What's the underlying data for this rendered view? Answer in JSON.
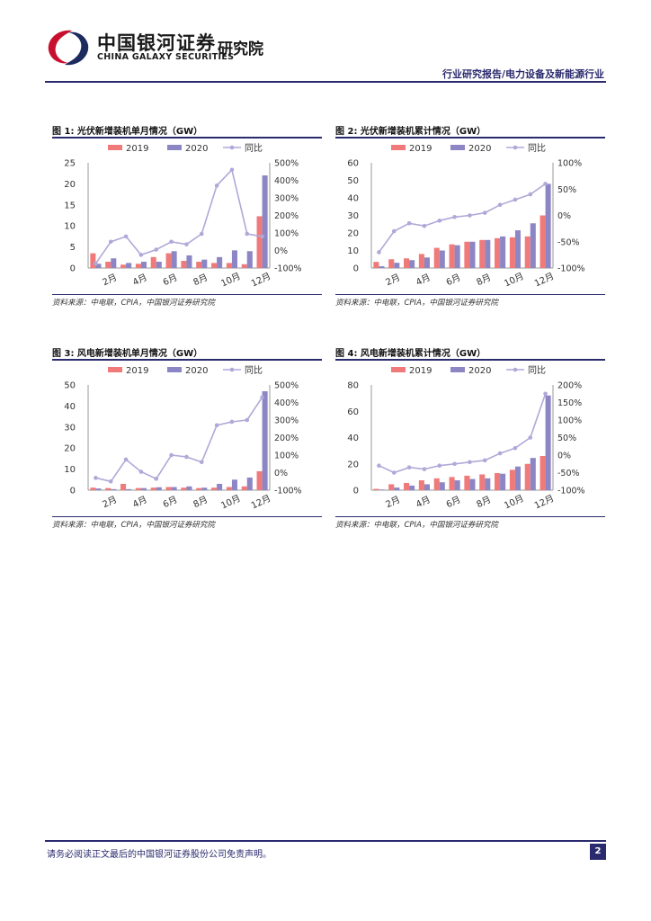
{
  "header": {
    "logo_cn": "中国银河证券",
    "logo_en": "CHINA GALAXY SECURITIES",
    "logo_sub": "研究院",
    "category": "行业研究报告/电力设备及新能源行业"
  },
  "colors": {
    "bar2019": "#f07a7a",
    "bar2020": "#8c86c4",
    "line": "#b0a8d8",
    "rule": "#2a2a6e"
  },
  "figures": [
    {
      "title": "图 1: 光伏新增装机单月情况（GW）",
      "source": "资料来源：中电联，CPIA，中国银河证券研究院"
    },
    {
      "title": "图 2: 光伏新增装机累计情况（GW）",
      "source": "资料来源：中电联，CPIA，中国银河证券研究院"
    },
    {
      "title": "图 3: 风电新增装机单月情况（GW）",
      "source": "资料来源：中电联，CPIA，中国银河证券研究院"
    },
    {
      "title": "图 4: 风电新增装机累计情况（GW）",
      "source": "资料来源：中电联，CPIA，中国银河证券研究院"
    }
  ],
  "chart_data": [
    {
      "type": "bar",
      "title": "光伏新增装机单月情况（GW）",
      "categories": [
        "1月",
        "2月",
        "3月",
        "4月",
        "5月",
        "6月",
        "7月",
        "8月",
        "9月",
        "10月",
        "11月",
        "12月"
      ],
      "x_tick_labels": [
        "2月",
        "4月",
        "6月",
        "8月",
        "10月",
        "12月"
      ],
      "legend": [
        "2019",
        "2020",
        "同比"
      ],
      "series": [
        {
          "name": "2019",
          "values": [
            3.5,
            1.5,
            0.8,
            1.0,
            2.6,
            3.5,
            1.7,
            1.5,
            1.2,
            1.2,
            0.9,
            12.3
          ]
        },
        {
          "name": "2020",
          "values": [
            1.0,
            2.3,
            1.2,
            1.5,
            1.5,
            4.0,
            3.0,
            2.0,
            2.6,
            4.2,
            4.0,
            22.0
          ]
        },
        {
          "name": "同比",
          "axis": "right",
          "values": [
            -75,
            50,
            80,
            -25,
            5,
            50,
            35,
            95,
            370,
            460,
            95,
            80
          ]
        }
      ],
      "ylim": [
        0,
        25
      ],
      "y_ticks": [
        "0",
        "5",
        "10",
        "15",
        "20",
        "25"
      ],
      "y2lim": [
        -100,
        500
      ],
      "y2_ticks": [
        "-100%",
        "0%",
        "100%",
        "200%",
        "300%",
        "400%",
        "500%"
      ]
    },
    {
      "type": "bar",
      "title": "光伏新增装机累计情况（GW）",
      "categories": [
        "1月",
        "2月",
        "3月",
        "4月",
        "5月",
        "6月",
        "7月",
        "8月",
        "9月",
        "10月",
        "11月",
        "12月"
      ],
      "x_tick_labels": [
        "2月",
        "4月",
        "6月",
        "8月",
        "10月",
        "12月"
      ],
      "legend": [
        "2019",
        "2020",
        "同比"
      ],
      "series": [
        {
          "name": "2019",
          "values": [
            3.5,
            5.0,
            5.5,
            8.0,
            11.5,
            13.5,
            15.0,
            16.0,
            17.0,
            17.5,
            18.0,
            30.0
          ]
        },
        {
          "name": "2020",
          "values": [
            1.0,
            3.0,
            4.5,
            6.0,
            10.0,
            13.0,
            15.0,
            16.0,
            18.0,
            21.5,
            25.5,
            48.0
          ]
        },
        {
          "name": "同比",
          "axis": "right",
          "values": [
            -70,
            -30,
            -15,
            -20,
            -10,
            -3,
            0,
            5,
            20,
            30,
            40,
            60
          ]
        }
      ],
      "ylim": [
        0,
        60
      ],
      "y_ticks": [
        "0",
        "10",
        "20",
        "30",
        "40",
        "50",
        "60"
      ],
      "y2lim": [
        -100,
        100
      ],
      "y2_ticks": [
        "-100%",
        "-50%",
        "0%",
        "50%",
        "100%"
      ]
    },
    {
      "type": "bar",
      "title": "风电新增装机单月情况（GW）",
      "categories": [
        "1月",
        "2月",
        "3月",
        "4月",
        "5月",
        "6月",
        "7月",
        "8月",
        "9月",
        "10月",
        "11月",
        "12月"
      ],
      "x_tick_labels": [
        "2月",
        "4月",
        "6月",
        "8月",
        "10月",
        "12月"
      ],
      "legend": [
        "2019",
        "2020",
        "同比"
      ],
      "series": [
        {
          "name": "2019",
          "values": [
            1.2,
            1.0,
            3.0,
            1.0,
            1.2,
            1.5,
            1.2,
            1.0,
            1.2,
            1.5,
            1.8,
            9.0
          ]
        },
        {
          "name": "2020",
          "values": [
            0.8,
            0.5,
            0.5,
            1.0,
            1.4,
            1.5,
            1.8,
            1.2,
            3.0,
            5.0,
            6.0,
            47.0
          ]
        },
        {
          "name": "同比",
          "axis": "right",
          "values": [
            -30,
            -50,
            75,
            5,
            -35,
            100,
            90,
            60,
            270,
            290,
            300,
            430
          ]
        }
      ],
      "ylim": [
        0,
        50
      ],
      "y_ticks": [
        "0",
        "10",
        "20",
        "30",
        "40",
        "50"
      ],
      "y2lim": [
        -100,
        500
      ],
      "y2_ticks": [
        "-100%",
        "0%",
        "100%",
        "200%",
        "300%",
        "400%",
        "500%"
      ]
    },
    {
      "type": "bar",
      "title": "风电新增装机累计情况（GW）",
      "categories": [
        "1月",
        "2月",
        "3月",
        "4月",
        "5月",
        "6月",
        "7月",
        "8月",
        "9月",
        "10月",
        "11月",
        "12月"
      ],
      "x_tick_labels": [
        "2月",
        "4月",
        "6月",
        "8月",
        "10月",
        "12月"
      ],
      "legend": [
        "2019",
        "2020",
        "同比"
      ],
      "series": [
        {
          "name": "2019",
          "values": [
            1.0,
            4.5,
            5.5,
            7.5,
            9.0,
            10.0,
            11.0,
            12.0,
            13.0,
            15.5,
            20.0,
            26.0
          ]
        },
        {
          "name": "2020",
          "values": [
            0.5,
            2.0,
            3.5,
            4.5,
            6.0,
            7.5,
            8.5,
            9.0,
            12.5,
            18.0,
            24.5,
            72.0
          ]
        },
        {
          "name": "同比",
          "axis": "right",
          "values": [
            -30,
            -50,
            -35,
            -40,
            -30,
            -25,
            -20,
            -15,
            5,
            20,
            50,
            175
          ]
        }
      ],
      "ylim": [
        0,
        80
      ],
      "y_ticks": [
        "0",
        "20",
        "40",
        "60",
        "80"
      ],
      "y2lim": [
        -100,
        200
      ],
      "y2_ticks": [
        "-100%",
        "-50%",
        "0%",
        "50%",
        "100%",
        "150%",
        "200%"
      ]
    }
  ],
  "footer": {
    "disclaimer": "请务必阅读正文最后的中国银河证券股份公司免责声明。",
    "page_number": "2"
  }
}
